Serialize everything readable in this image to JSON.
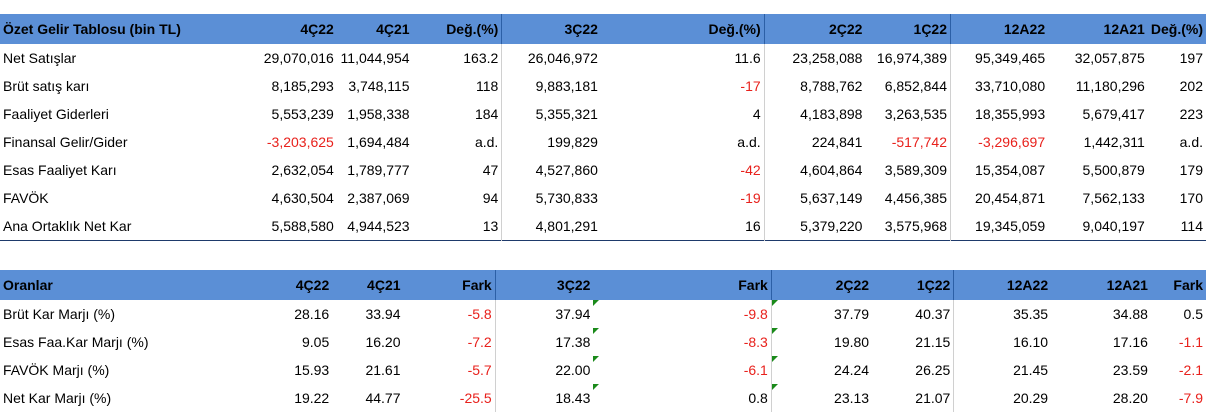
{
  "income": {
    "headers": [
      "Özet Gelir Tablosu (bin TL)",
      "4Ç22",
      "4Ç21",
      "Değ.(%)",
      "3Ç22",
      "Değ.(%)",
      "2Ç22",
      "1Ç22",
      "12A22",
      "12A21",
      "Değ.(%)"
    ],
    "rows": [
      [
        "Net Satışlar",
        "29,070,016",
        "11,044,954",
        "163.2",
        "26,046,972",
        "11.6",
        "23,258,088",
        "16,974,389",
        "95,349,465",
        "32,057,875",
        "197"
      ],
      [
        "Brüt satış karı",
        "8,185,293",
        "3,748,115",
        "118",
        "9,883,181",
        "-17",
        "8,788,762",
        "6,852,844",
        "33,710,080",
        "11,180,296",
        "202"
      ],
      [
        "Faaliyet Giderleri",
        "5,553,239",
        "1,958,338",
        "184",
        "5,355,321",
        "4",
        "4,183,898",
        "3,263,535",
        "18,355,993",
        "5,679,417",
        "223"
      ],
      [
        "Finansal Gelir/Gider",
        "-3,203,625",
        "1,694,484",
        "a.d.",
        "199,829",
        "a.d.",
        "224,841",
        "-517,742",
        "-3,296,697",
        "1,442,311",
        "a.d."
      ],
      [
        "Esas Faaliyet Karı",
        "2,632,054",
        "1,789,777",
        "47",
        "4,527,860",
        "-42",
        "4,604,864",
        "3,589,309",
        "15,354,087",
        "5,500,879",
        "179"
      ],
      [
        "FAVÖK",
        "4,630,504",
        "2,387,069",
        "94",
        "5,730,833",
        "-19",
        "5,637,149",
        "4,456,385",
        "20,454,871",
        "7,562,133",
        "170"
      ],
      [
        "Ana Ortaklık Net Kar",
        "5,588,580",
        "4,944,523",
        "13",
        "4,801,291",
        "16",
        "5,379,220",
        "3,575,968",
        "19,345,059",
        "9,040,197",
        "114"
      ]
    ]
  },
  "ratios": {
    "headers": [
      "Oranlar",
      "4Ç22",
      "4Ç21",
      "Fark",
      "3Ç22",
      "Fark",
      "2Ç22",
      "1Ç22",
      "12A22",
      "12A21",
      "Fark"
    ],
    "rows": [
      [
        "Brüt Kar Marjı (%)",
        "28.16",
        "33.94",
        "-5.8",
        "37.94",
        "-9.8",
        "37.79",
        "40.37",
        "35.35",
        "34.88",
        "0.5"
      ],
      [
        "Esas Faa.Kar Marjı (%)",
        "9.05",
        "16.20",
        "-7.2",
        "17.38",
        "-8.3",
        "19.80",
        "21.15",
        "16.10",
        "17.16",
        "-1.1"
      ],
      [
        "FAVÖK Marjı (%)",
        "15.93",
        "21.61",
        "-5.7",
        "22.00",
        "-6.1",
        "24.24",
        "26.25",
        "21.45",
        "23.59",
        "-2.1"
      ],
      [
        "Net Kar Marjı (%)",
        "19.22",
        "44.77",
        "-25.5",
        "18.43",
        "0.8",
        "23.13",
        "21.07",
        "20.29",
        "28.20",
        "-7.9"
      ]
    ]
  },
  "colors": {
    "header_bg": "#5b8fd6",
    "negative": "#e8211c",
    "note_marker": "#1a8a1a"
  }
}
